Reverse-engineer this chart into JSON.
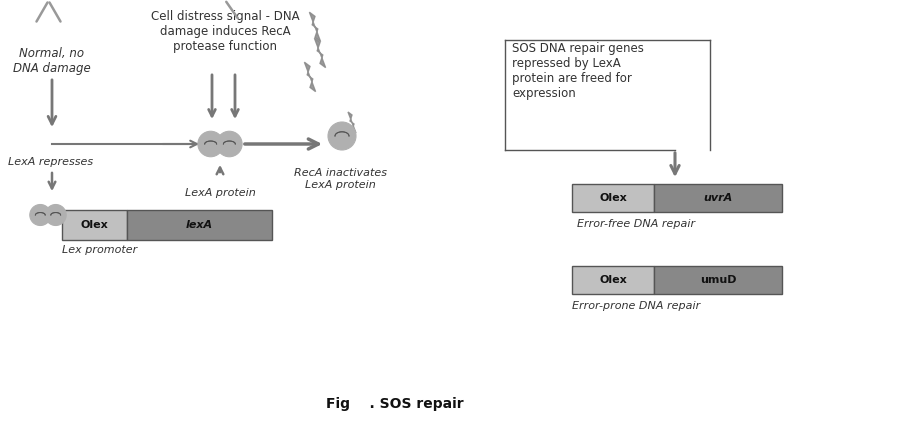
{
  "title": "Fig    . SOS repair",
  "bg_color": "#ffffff",
  "text_color": "#333333",
  "gray_dark": "#777777",
  "box_light": "#c0c0c0",
  "box_dark": "#888888",
  "annotations": {
    "normal_no_damage": "Normal, no\nDNA damage",
    "cell_distress": "Cell distress signal - DNA\ndamage induces RecA\nprotease function",
    "lexa_represses": "LexA represses",
    "lexa_protein": "LexA protein",
    "reca_inactivates": "RecA inactivates\nLexA protein",
    "sos_genes": "SOS DNA repair genes\nrepressed by LexA\nprotein are freed for\nexpression",
    "lex_promoter": "Lex promoter",
    "error_free": "Error-free DNA repair",
    "error_prone": "Error-prone DNA repair"
  }
}
